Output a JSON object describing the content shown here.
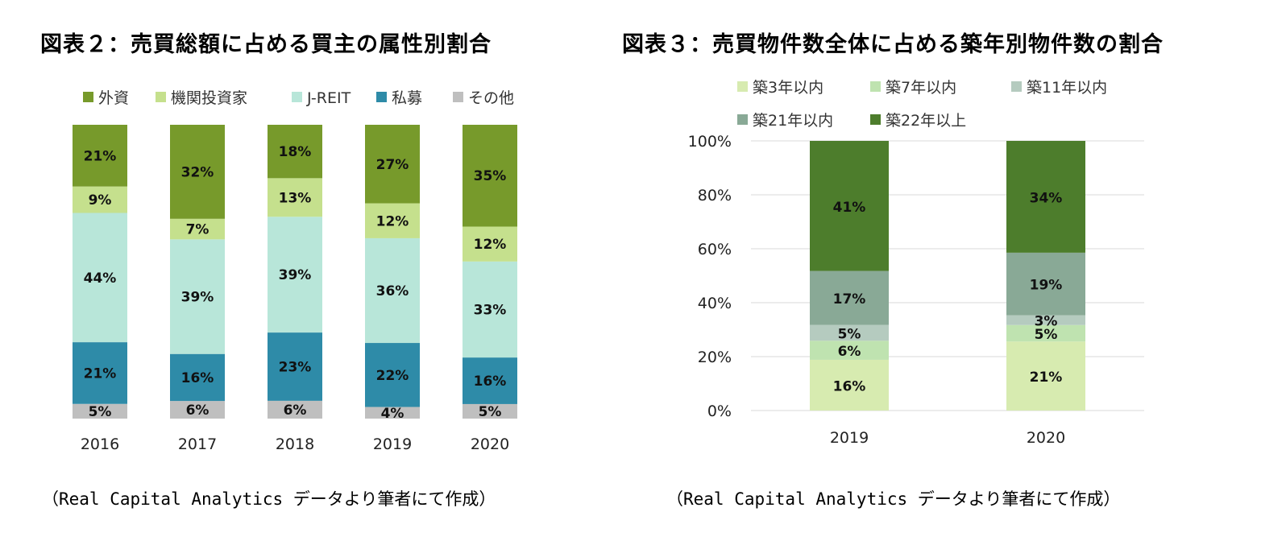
{
  "chart_data": [
    {
      "type": "bar",
      "stacked": true,
      "title": "図表２：売買総額に占める買主の属性別割合",
      "categories": [
        "2016",
        "2017",
        "2018",
        "2019",
        "2020"
      ],
      "series": [
        {
          "name": "その他",
          "color": "#bfbfbf",
          "values": [
            5,
            6,
            6,
            4,
            5
          ]
        },
        {
          "name": "私募",
          "color": "#2e8ba8",
          "values": [
            21,
            16,
            23,
            22,
            16
          ]
        },
        {
          "name": "J-REIT",
          "color": "#b8e6d9",
          "values": [
            44,
            39,
            39,
            36,
            33
          ]
        },
        {
          "name": "機関投資家",
          "color": "#c5e08d",
          "values": [
            9,
            7,
            13,
            12,
            12
          ]
        },
        {
          "name": "外資",
          "color": "#779a2b",
          "values": [
            21,
            32,
            18,
            27,
            35
          ]
        }
      ],
      "legend_order": [
        "外資",
        "機関投資家",
        "J-REIT",
        "私募",
        "その他"
      ],
      "legend_position": "top",
      "y_axis_shown": false,
      "source": "（Real Capital Analytics データより筆者にて作成）"
    },
    {
      "type": "bar",
      "stacked": true,
      "title": "図表３：売買物件数全体に占める築年別物件数の割合",
      "categories": [
        "2019",
        "2020"
      ],
      "series": [
        {
          "name": "築3年以内",
          "color": "#d7ebb0",
          "values": [
            16,
            21
          ]
        },
        {
          "name": "築7年以内",
          "color": "#bfe3b0",
          "values": [
            6,
            5
          ]
        },
        {
          "name": "築11年以内",
          "color": "#b5cbbf",
          "values": [
            5,
            3
          ]
        },
        {
          "name": "築21年以内",
          "color": "#89a996",
          "values": [
            17,
            19
          ]
        },
        {
          "name": "築22年以上",
          "color": "#4d7d2c",
          "values": [
            41,
            34
          ]
        }
      ],
      "ylim": [
        0,
        100
      ],
      "yticks": [
        "0%",
        "20%",
        "40%",
        "60%",
        "80%",
        "100%"
      ],
      "grid": true,
      "legend_position": "top",
      "source": "（Real Capital Analytics データより筆者にて作成）"
    }
  ]
}
